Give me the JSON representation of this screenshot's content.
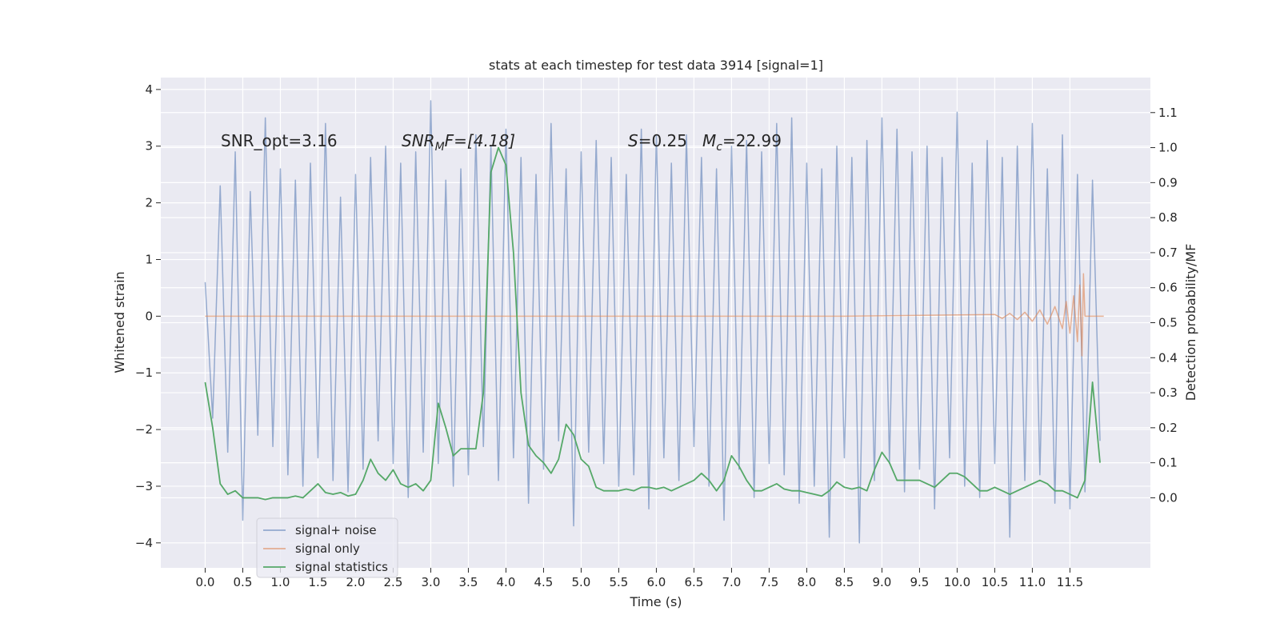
{
  "chart_data": {
    "type": "line",
    "title": "stats at each timestep for test data 3914 [signal=1]",
    "xlabel": "Time (s)",
    "ylabel": "Whitened strain",
    "y2label": "Detection probability/MF",
    "annotations": [
      "SNR_opt=3.16",
      {
        "base": "SNR",
        "sub": "M",
        "rest": "F=[4.18]"
      },
      {
        "base": "S",
        "rest": "=0.25"
      },
      {
        "base": "M",
        "sub": "c",
        "rest": "=22.99"
      }
    ],
    "x": [
      0,
      0.1,
      0.2,
      0.3,
      0.4,
      0.5,
      0.6,
      0.7,
      0.8,
      0.9,
      1.0,
      1.1,
      1.2,
      1.3,
      1.4,
      1.5,
      1.6,
      1.7,
      1.8,
      1.9,
      2.0,
      2.1,
      2.2,
      2.3,
      2.4,
      2.5,
      2.6,
      2.7,
      2.8,
      2.9,
      3.0,
      3.1,
      3.2,
      3.3,
      3.4,
      3.5,
      3.6,
      3.7,
      3.8,
      3.9,
      4.0,
      4.1,
      4.2,
      4.3,
      4.4,
      4.5,
      4.6,
      4.7,
      4.8,
      4.9,
      5.0,
      5.1,
      5.2,
      5.3,
      5.4,
      5.5,
      5.6,
      5.7,
      5.8,
      5.9,
      6.0,
      6.1,
      6.2,
      6.3,
      6.4,
      6.5,
      6.6,
      6.7,
      6.8,
      6.9,
      7.0,
      7.1,
      7.2,
      7.3,
      7.4,
      7.5,
      7.6,
      7.7,
      7.8,
      7.9,
      8.0,
      8.1,
      8.2,
      8.3,
      8.4,
      8.5,
      8.6,
      8.7,
      8.8,
      8.9,
      9.0,
      9.1,
      9.2,
      9.3,
      9.4,
      9.5,
      9.6,
      9.7,
      9.8,
      9.9,
      10.0,
      10.1,
      10.2,
      10.3,
      10.4,
      10.5,
      10.6,
      10.7,
      10.8,
      10.9,
      11.0,
      11.1,
      11.2,
      11.3,
      11.4,
      11.5,
      11.6,
      11.7,
      11.8,
      11.9
    ],
    "series": [
      {
        "name": "signal+ noise",
        "color": "#4c72b0",
        "axis": "y",
        "values": [
          0.6,
          -1.8,
          2.3,
          -2.4,
          2.9,
          -3.6,
          2.2,
          -2.1,
          3.5,
          -2.3,
          2.6,
          -2.8,
          2.4,
          -3.0,
          2.7,
          -2.5,
          3.4,
          -2.9,
          2.1,
          -3.1,
          2.5,
          -2.7,
          2.8,
          -2.2,
          3.0,
          -2.6,
          2.7,
          -3.2,
          2.9,
          -2.4,
          3.8,
          -2.6,
          2.4,
          -3.0,
          2.6,
          -2.8,
          3.2,
          -2.3,
          3.0,
          -2.9,
          3.3,
          -2.5,
          2.8,
          -3.3,
          2.5,
          -2.7,
          3.4,
          -2.2,
          2.6,
          -3.7,
          2.9,
          -2.4,
          3.1,
          -2.6,
          2.8,
          -3.0,
          2.5,
          -2.8,
          3.3,
          -3.4,
          3.2,
          -2.5,
          2.7,
          -2.9,
          3.2,
          -2.3,
          2.8,
          -3.0,
          2.6,
          -3.6,
          3.0,
          -2.7,
          3.1,
          -3.2,
          2.9,
          -2.6,
          3.4,
          -2.8,
          3.5,
          -3.3,
          2.7,
          -3.0,
          2.6,
          -3.9,
          3.0,
          -2.5,
          2.8,
          -4.0,
          3.1,
          -2.9,
          3.5,
          -2.6,
          3.3,
          -3.1,
          2.9,
          -2.7,
          3.0,
          -3.4,
          2.8,
          -2.5,
          3.6,
          -3.0,
          2.7,
          -3.2,
          3.1,
          -2.6,
          2.8,
          -3.9,
          3.0,
          -2.9,
          3.4,
          -2.8,
          2.6,
          -3.3,
          3.2,
          -3.4,
          2.5,
          -3.1,
          2.4,
          -2.2
        ]
      },
      {
        "name": "signal only",
        "color": "#dd8452",
        "axis": "y",
        "x": [
          0,
          8.5,
          10.5,
          10.6,
          10.7,
          10.8,
          10.9,
          11.0,
          11.1,
          11.2,
          11.3,
          11.4,
          11.45,
          11.5,
          11.55,
          11.6,
          11.63,
          11.66,
          11.68,
          11.7,
          11.95
        ],
        "values": [
          0,
          0,
          0.03,
          -0.04,
          0.05,
          -0.06,
          0.07,
          -0.09,
          0.11,
          -0.14,
          0.17,
          -0.22,
          0.26,
          -0.3,
          0.36,
          -0.45,
          0.55,
          -0.7,
          0.75,
          0,
          0
        ]
      },
      {
        "name": "signal statistics",
        "color": "#55a868",
        "axis": "y2",
        "values": [
          0.33,
          0.2,
          0.04,
          0.01,
          0.02,
          0.0,
          0.0,
          0.0,
          -0.005,
          0.0,
          0.0,
          0.0,
          0.005,
          0.0,
          0.02,
          0.04,
          0.015,
          0.01,
          0.015,
          0.005,
          0.01,
          0.05,
          0.11,
          0.07,
          0.05,
          0.08,
          0.04,
          0.03,
          0.04,
          0.02,
          0.05,
          0.27,
          0.2,
          0.12,
          0.14,
          0.14,
          0.14,
          0.3,
          0.93,
          1.0,
          0.95,
          0.7,
          0.3,
          0.15,
          0.12,
          0.1,
          0.07,
          0.11,
          0.21,
          0.18,
          0.11,
          0.09,
          0.03,
          0.02,
          0.02,
          0.02,
          0.025,
          0.02,
          0.03,
          0.03,
          0.025,
          0.03,
          0.02,
          0.03,
          0.04,
          0.05,
          0.07,
          0.05,
          0.02,
          0.05,
          0.12,
          0.09,
          0.05,
          0.02,
          0.02,
          0.03,
          0.04,
          0.025,
          0.02,
          0.02,
          0.015,
          0.01,
          0.005,
          0.02,
          0.045,
          0.03,
          0.025,
          0.03,
          0.02,
          0.08,
          0.13,
          0.1,
          0.05,
          0.05,
          0.05,
          0.05,
          0.04,
          0.03,
          0.05,
          0.07,
          0.07,
          0.06,
          0.04,
          0.02,
          0.02,
          0.03,
          0.02,
          0.01,
          0.02,
          0.03,
          0.04,
          0.05,
          0.04,
          0.02,
          0.02,
          0.01,
          0.0,
          0.05,
          0.33,
          0.1
        ]
      }
    ],
    "xlim": [
      -0.59,
      12.57
    ],
    "xticks": [
      {
        "value": 0,
        "label": "0.0"
      },
      0.5,
      {
        "value": 1,
        "label": "1.0"
      },
      1.5,
      {
        "value": 2,
        "label": "2.0"
      },
      2.5,
      {
        "value": 3,
        "label": "3.0"
      },
      3.5,
      {
        "value": 4,
        "label": "4.0"
      },
      4.5,
      {
        "value": 5,
        "label": "5.0"
      },
      5.5,
      {
        "value": 6,
        "label": "6.0"
      },
      6.5,
      {
        "value": 7,
        "label": "7.0"
      },
      7.5,
      {
        "value": 8,
        "label": "8.0"
      },
      8.5,
      {
        "value": 9,
        "label": "9.0"
      },
      9.5,
      {
        "value": 10,
        "label": "10.0"
      },
      10.5,
      {
        "value": 11,
        "label": "11.0"
      },
      11.5
    ],
    "ylim": [
      -4.44,
      4.21
    ],
    "yticks": [
      {
        "value": -4,
        "label": "−4"
      },
      {
        "value": -3,
        "label": "−3"
      },
      {
        "value": -2,
        "label": "−2"
      },
      {
        "value": -1,
        "label": "−1"
      },
      0,
      1,
      2,
      3,
      4
    ],
    "y2lim": [
      -0.2,
      1.2
    ],
    "y2ticks": [
      {
        "value": 0,
        "label": "0.0"
      },
      0.1,
      0.2,
      0.3,
      0.4,
      0.5,
      0.6,
      0.7,
      0.8,
      0.9,
      {
        "value": 1,
        "label": "1.0"
      },
      1.1
    ],
    "grid": true,
    "legend": "lower left"
  }
}
